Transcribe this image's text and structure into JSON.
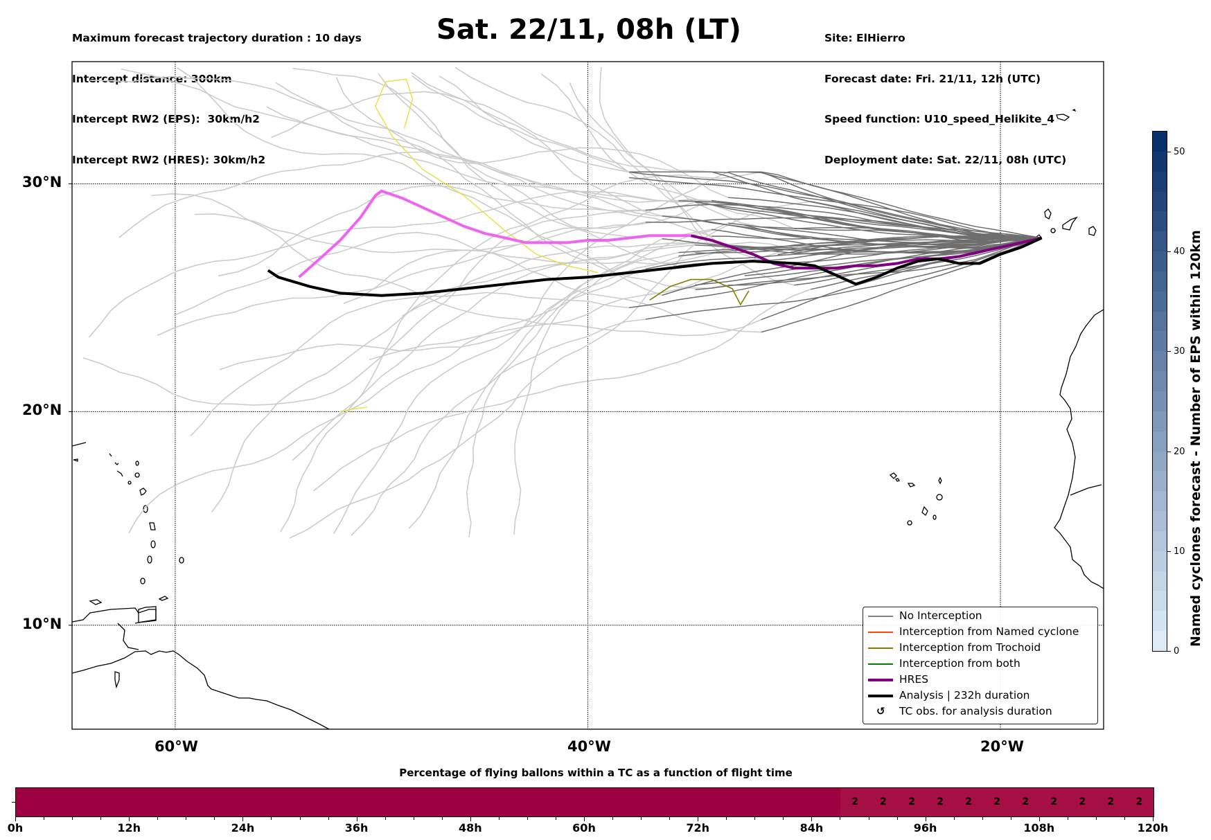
{
  "header": {
    "left_lines": [
      "Maximum forecast trajectory duration : 10 days",
      "Intercept distance: 300km",
      "Intercept RW2 (EPS):  30km/h2",
      "Intercept RW2 (HRES): 30km/h2"
    ],
    "title": "Sat. 22/11, 08h (LT)",
    "right_lines": [
      "Site: ElHierro",
      "Forecast date: Fri. 21/11, 12h (UTC)",
      "Speed function: U10_speed_Helikite_4",
      "Deployment date: Sat. 22/11, 08h (UTC)"
    ]
  },
  "map": {
    "extent": {
      "lon_min": -65,
      "lon_max": -15,
      "lat_min": 5,
      "lat_max": 35
    },
    "lat_gridlines": [
      {
        "lat": 30,
        "label": "30°N"
      },
      {
        "lat": 20,
        "label": "20°N"
      },
      {
        "lat": 10,
        "label": "10°N"
      }
    ],
    "lon_gridlines": [
      {
        "lon": -60,
        "label": "60°W"
      },
      {
        "lon": -40,
        "label": "40°W"
      },
      {
        "lon": -20,
        "label": "20°W"
      }
    ],
    "launch_site": {
      "name": "ElHierro",
      "lon": -18.0,
      "lat": 27.7
    },
    "colors": {
      "no_interception_far": "#cccccc",
      "no_interception_near": "#6e6e6e",
      "named_cyclone": "#ff4500",
      "trochoid": "#808000",
      "both": "#008000",
      "hres": "#800080",
      "hres_late": "#ee66ee",
      "analysis": "#000000",
      "yellow_member": "#e8e040",
      "coast": "#000000"
    },
    "tracks": {
      "analysis": [
        [
          -18.0,
          27.7
        ],
        [
          -19,
          27.3
        ],
        [
          -20,
          27.0
        ],
        [
          -21,
          26.6
        ],
        [
          -22,
          26.6
        ],
        [
          -23,
          26.8
        ],
        [
          -24,
          26.7
        ],
        [
          -25,
          26.4
        ],
        [
          -26,
          26.0
        ],
        [
          -27,
          25.7
        ],
        [
          -28,
          26.1
        ],
        [
          -29,
          26.5
        ],
        [
          -30,
          26.6
        ],
        [
          -32,
          26.7
        ],
        [
          -34,
          26.6
        ],
        [
          -36,
          26.4
        ],
        [
          -38,
          26.2
        ],
        [
          -40,
          26.0
        ],
        [
          -42,
          25.9
        ],
        [
          -44,
          25.7
        ],
        [
          -46,
          25.5
        ],
        [
          -48,
          25.3
        ],
        [
          -50,
          25.2
        ],
        [
          -52,
          25.3
        ],
        [
          -53.5,
          25.6
        ],
        [
          -55,
          26.0
        ],
        [
          -55.5,
          26.3
        ]
      ],
      "hres_near": [
        [
          -18.0,
          27.7
        ],
        [
          -19,
          27.5
        ],
        [
          -20,
          27.3
        ],
        [
          -21,
          27.1
        ],
        [
          -22,
          26.9
        ],
        [
          -23,
          26.8
        ],
        [
          -24,
          26.8
        ],
        [
          -25,
          26.6
        ],
        [
          -26,
          26.5
        ],
        [
          -27,
          26.5
        ],
        [
          -28,
          26.4
        ],
        [
          -29,
          26.4
        ],
        [
          -30,
          26.4
        ],
        [
          -31,
          26.6
        ],
        [
          -32,
          27.0
        ],
        [
          -33,
          27.3
        ],
        [
          -34,
          27.6
        ],
        [
          -35,
          27.8
        ]
      ],
      "hres_far": [
        [
          -35,
          27.8
        ],
        [
          -36,
          27.8
        ],
        [
          -37,
          27.8
        ],
        [
          -38,
          27.7
        ],
        [
          -39,
          27.6
        ],
        [
          -40,
          27.6
        ],
        [
          -41,
          27.5
        ],
        [
          -42,
          27.5
        ],
        [
          -43,
          27.5
        ],
        [
          -44,
          27.7
        ],
        [
          -45,
          27.9
        ],
        [
          -46,
          28.2
        ],
        [
          -47,
          28.6
        ],
        [
          -48,
          29.0
        ],
        [
          -49,
          29.4
        ],
        [
          -50,
          29.7
        ],
        [
          -50.3,
          29.5
        ],
        [
          -51,
          28.6
        ],
        [
          -52,
          27.6
        ],
        [
          -53,
          26.8
        ],
        [
          -54,
          26.0
        ]
      ],
      "trochoid": [
        [
          -37,
          25.0
        ],
        [
          -36,
          25.6
        ],
        [
          -35,
          25.9
        ],
        [
          -34,
          25.9
        ],
        [
          -33,
          25.5
        ],
        [
          -32.6,
          24.8
        ],
        [
          -32.2,
          25.4
        ]
      ],
      "yellow": [
        [
          -50.7,
          20.2
        ],
        [
          -51.5,
          20.1
        ],
        [
          -52,
          20.0
        ]
      ],
      "yellow2": [
        [
          -39.5,
          26.2
        ],
        [
          -41,
          26.5
        ],
        [
          -42.5,
          27.0
        ],
        [
          -44,
          28.0
        ],
        [
          -46,
          29.5
        ],
        [
          -48,
          30.6
        ],
        [
          -49.5,
          32.0
        ],
        [
          -50.3,
          33.2
        ],
        [
          -49.8,
          34.2
        ],
        [
          -48.8,
          34.3
        ],
        [
          -48.5,
          33.5
        ],
        [
          -48.9,
          32.3
        ]
      ]
    }
  },
  "legend": {
    "items": [
      {
        "label": "No Interception",
        "style": "thin",
        "color": "#808080"
      },
      {
        "label": "Interception from Named cyclone",
        "style": "thin",
        "color": "#ff4500"
      },
      {
        "label": "Interception from Trochoid",
        "style": "thin",
        "color": "#808000"
      },
      {
        "label": "Interception from both",
        "style": "thin",
        "color": "#008000"
      },
      {
        "label": "HRES",
        "style": "thick",
        "color": "#800080"
      },
      {
        "label": "Analysis | 232h duration",
        "style": "thick",
        "color": "#000000"
      },
      {
        "label": "TC obs. for analysis duration",
        "style": "symbol",
        "symbol": "↺"
      }
    ]
  },
  "colorbar": {
    "title": "Named cyclones forecast - Number of EPS within 120km",
    "min": 0,
    "max": 52,
    "ticks": [
      0,
      10,
      20,
      30,
      40,
      50
    ],
    "color_low": "#deebf7",
    "color_high": "#08306b"
  },
  "timebar": {
    "title": "Percentage of flying ballons within a TC as a function of flight time",
    "max_hours": 120,
    "step_hours": 3,
    "tick_labels": [
      "0h",
      "12h",
      "24h",
      "36h",
      "48h",
      "60h",
      "72h",
      "84h",
      "96h",
      "108h",
      "120h"
    ],
    "base_color": "#9e0142",
    "segment_color": "#a50f45",
    "segments_start_hour": 87,
    "segment_values": [
      "2",
      "2",
      "2",
      "2",
      "2",
      "2",
      "2",
      "2",
      "2",
      "2",
      "2"
    ]
  }
}
